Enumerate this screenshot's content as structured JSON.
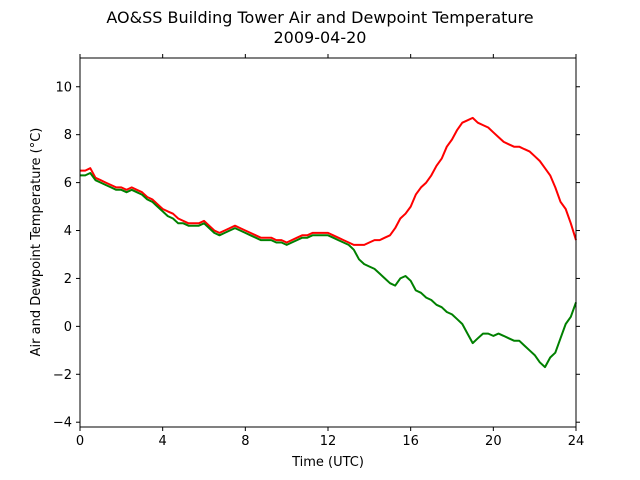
{
  "chart_data": {
    "type": "line",
    "title": "AO&SS Building Tower Air and Dewpoint Temperature",
    "subtitle": "2009-04-20",
    "xlabel": "Time (UTC)",
    "ylabel": "Air and Dewpoint Temperature (°C)",
    "xlim": [
      0,
      24
    ],
    "ylim": [
      -4.2,
      11.2
    ],
    "xticks": [
      0,
      4,
      8,
      12,
      16,
      20,
      24
    ],
    "yticks": [
      -4,
      -2,
      0,
      2,
      4,
      6,
      8,
      10
    ],
    "grid": false,
    "legend": "none",
    "series": [
      {
        "color": "#ff0000",
        "x": [
          0,
          0.25,
          0.5,
          0.75,
          1.0,
          1.25,
          1.5,
          1.75,
          2.0,
          2.25,
          2.5,
          2.75,
          3.0,
          3.25,
          3.5,
          3.75,
          4.0,
          4.25,
          4.5,
          4.75,
          5.0,
          5.25,
          5.5,
          5.75,
          6.0,
          6.25,
          6.5,
          6.75,
          7.0,
          7.25,
          7.5,
          7.75,
          8.0,
          8.25,
          8.5,
          8.75,
          9.0,
          9.25,
          9.5,
          9.75,
          10.0,
          10.25,
          10.5,
          10.75,
          11.0,
          11.25,
          11.5,
          11.75,
          12.0,
          12.25,
          12.5,
          12.75,
          13.0,
          13.25,
          13.5,
          13.75,
          14.0,
          14.25,
          14.5,
          14.75,
          15.0,
          15.25,
          15.5,
          15.75,
          16.0,
          16.25,
          16.5,
          16.75,
          17.0,
          17.25,
          17.5,
          17.75,
          18.0,
          18.25,
          18.5,
          18.75,
          19.0,
          19.25,
          19.5,
          19.75,
          20.0,
          20.25,
          20.5,
          20.75,
          21.0,
          21.25,
          21.5,
          21.75,
          22.0,
          22.25,
          22.5,
          22.75,
          23.0,
          23.25,
          23.5,
          23.75,
          24.0
        ],
        "y": [
          6.5,
          6.5,
          6.6,
          6.2,
          6.1,
          6.0,
          5.9,
          5.8,
          5.8,
          5.7,
          5.8,
          5.7,
          5.6,
          5.4,
          5.3,
          5.1,
          4.9,
          4.8,
          4.7,
          4.5,
          4.4,
          4.3,
          4.3,
          4.3,
          4.4,
          4.2,
          4.0,
          3.9,
          4.0,
          4.1,
          4.2,
          4.1,
          4.0,
          3.9,
          3.8,
          3.7,
          3.7,
          3.7,
          3.6,
          3.6,
          3.5,
          3.6,
          3.7,
          3.8,
          3.8,
          3.9,
          3.9,
          3.9,
          3.9,
          3.8,
          3.7,
          3.6,
          3.5,
          3.4,
          3.4,
          3.4,
          3.5,
          3.6,
          3.6,
          3.7,
          3.8,
          4.1,
          4.5,
          4.7,
          5.0,
          5.5,
          5.8,
          6.0,
          6.3,
          6.7,
          7.0,
          7.5,
          7.8,
          8.2,
          8.5,
          8.6,
          8.7,
          8.5,
          8.4,
          8.3,
          8.1,
          7.9,
          7.7,
          7.6,
          7.5,
          7.5,
          7.4,
          7.3,
          7.1,
          6.9,
          6.6,
          6.3,
          5.8,
          5.2,
          4.9,
          4.3,
          3.6
        ]
      },
      {
        "color": "#008000",
        "x": [
          0,
          0.25,
          0.5,
          0.75,
          1.0,
          1.25,
          1.5,
          1.75,
          2.0,
          2.25,
          2.5,
          2.75,
          3.0,
          3.25,
          3.5,
          3.75,
          4.0,
          4.25,
          4.5,
          4.75,
          5.0,
          5.25,
          5.5,
          5.75,
          6.0,
          6.25,
          6.5,
          6.75,
          7.0,
          7.25,
          7.5,
          7.75,
          8.0,
          8.25,
          8.5,
          8.75,
          9.0,
          9.25,
          9.5,
          9.75,
          10.0,
          10.25,
          10.5,
          10.75,
          11.0,
          11.25,
          11.5,
          11.75,
          12.0,
          12.25,
          12.5,
          12.75,
          13.0,
          13.25,
          13.5,
          13.75,
          14.0,
          14.25,
          14.5,
          14.75,
          15.0,
          15.25,
          15.5,
          15.75,
          16.0,
          16.25,
          16.5,
          16.75,
          17.0,
          17.25,
          17.5,
          17.75,
          18.0,
          18.25,
          18.5,
          18.75,
          19.0,
          19.25,
          19.5,
          19.75,
          20.0,
          20.25,
          20.5,
          20.75,
          21.0,
          21.25,
          21.5,
          21.75,
          22.0,
          22.25,
          22.5,
          22.75,
          23.0,
          23.25,
          23.5,
          23.75,
          24.0
        ],
        "y": [
          6.3,
          6.3,
          6.4,
          6.1,
          6.0,
          5.9,
          5.8,
          5.7,
          5.7,
          5.6,
          5.7,
          5.6,
          5.5,
          5.3,
          5.2,
          5.0,
          4.8,
          4.6,
          4.5,
          4.3,
          4.3,
          4.2,
          4.2,
          4.2,
          4.3,
          4.1,
          3.9,
          3.8,
          3.9,
          4.0,
          4.1,
          4.0,
          3.9,
          3.8,
          3.7,
          3.6,
          3.6,
          3.6,
          3.5,
          3.5,
          3.4,
          3.5,
          3.6,
          3.7,
          3.7,
          3.8,
          3.8,
          3.8,
          3.8,
          3.7,
          3.6,
          3.5,
          3.4,
          3.2,
          2.8,
          2.6,
          2.5,
          2.4,
          2.2,
          2.0,
          1.8,
          1.7,
          2.0,
          2.1,
          1.9,
          1.5,
          1.4,
          1.2,
          1.1,
          0.9,
          0.8,
          0.6,
          0.5,
          0.3,
          0.1,
          -0.3,
          -0.7,
          -0.5,
          -0.3,
          -0.3,
          -0.4,
          -0.3,
          -0.4,
          -0.5,
          -0.6,
          -0.6,
          -0.8,
          -1.0,
          -1.2,
          -1.5,
          -1.7,
          -1.3,
          -1.1,
          -0.5,
          0.1,
          0.4,
          1.0
        ]
      }
    ]
  }
}
